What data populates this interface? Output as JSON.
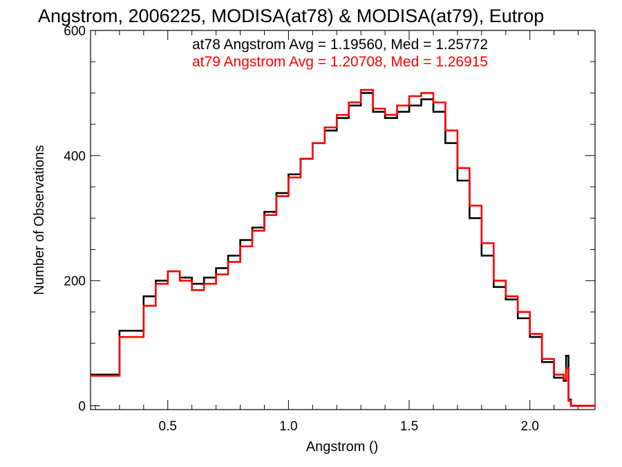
{
  "chart_data": {
    "type": "line",
    "title": "Angstrom, 2006225, MODISA(at78) & MODISA(at79), Eutrop",
    "xlabel": "Angstrom ()",
    "ylabel": "Number of Observations",
    "xlim": [
      0.18,
      2.27
    ],
    "ylim": [
      -6,
      600
    ],
    "xticks": [
      0.5,
      1.0,
      1.5,
      2.0
    ],
    "xtick_labels": [
      "0.5",
      "1.0",
      "1.5",
      "2.0"
    ],
    "yticks": [
      0,
      200,
      400,
      600
    ],
    "ytick_labels": [
      "0",
      "200",
      "400",
      "600"
    ],
    "grid": false,
    "annotations": [
      {
        "text": "at78 Angstrom Avg = 1.19560, Med = 1.25772",
        "color": "#000000"
      },
      {
        "text": "at79 Angstrom Avg = 1.20708, Med = 1.26915",
        "color": "#ff0000"
      }
    ],
    "series": [
      {
        "name": "at78",
        "color": "#000000",
        "x": [
          0.18,
          0.3,
          0.4,
          0.45,
          0.5,
          0.55,
          0.6,
          0.65,
          0.7,
          0.75,
          0.8,
          0.85,
          0.9,
          0.95,
          1.0,
          1.05,
          1.1,
          1.15,
          1.2,
          1.25,
          1.3,
          1.35,
          1.4,
          1.45,
          1.5,
          1.55,
          1.6,
          1.65,
          1.7,
          1.75,
          1.8,
          1.85,
          1.9,
          1.95,
          2.0,
          2.05,
          2.1,
          2.14,
          2.15,
          2.16,
          2.17,
          2.27
        ],
        "y": [
          50,
          120,
          175,
          200,
          215,
          205,
          195,
          205,
          220,
          240,
          265,
          285,
          310,
          340,
          370,
          395,
          420,
          440,
          460,
          480,
          500,
          470,
          460,
          470,
          480,
          490,
          470,
          420,
          360,
          300,
          240,
          190,
          170,
          140,
          110,
          70,
          45,
          40,
          80,
          10,
          0,
          0
        ]
      },
      {
        "name": "at79",
        "color": "#ff0000",
        "x": [
          0.18,
          0.3,
          0.4,
          0.45,
          0.5,
          0.55,
          0.6,
          0.65,
          0.7,
          0.75,
          0.8,
          0.85,
          0.9,
          0.95,
          1.0,
          1.05,
          1.1,
          1.15,
          1.2,
          1.25,
          1.3,
          1.35,
          1.4,
          1.45,
          1.5,
          1.55,
          1.6,
          1.65,
          1.7,
          1.75,
          1.8,
          1.85,
          1.9,
          1.95,
          2.0,
          2.05,
          2.1,
          2.14,
          2.15,
          2.16,
          2.17,
          2.27
        ],
        "y": [
          48,
          110,
          160,
          195,
          215,
          200,
          185,
          195,
          210,
          230,
          255,
          280,
          305,
          335,
          365,
          395,
          420,
          445,
          465,
          485,
          505,
          475,
          465,
          480,
          495,
          500,
          485,
          440,
          380,
          320,
          260,
          200,
          175,
          150,
          115,
          75,
          50,
          42,
          60,
          8,
          0,
          0
        ]
      }
    ]
  }
}
